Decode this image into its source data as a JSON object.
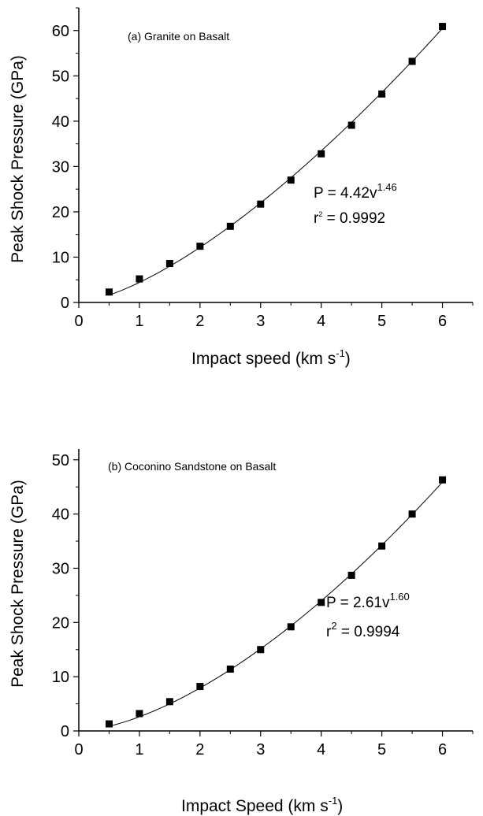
{
  "chart_data": [
    {
      "type": "scatter",
      "annotation": "(a) Granite on Basalt",
      "xlabel": "Impact speed (km s",
      "xlabel_sup": "-1",
      "xlabel_close": ")",
      "ylabel": "Peak Shock Pressure (GPa)",
      "xlim": [
        0,
        6.5
      ],
      "ylim": [
        0,
        65
      ],
      "xticks": [
        0,
        1,
        2,
        3,
        4,
        5,
        6
      ],
      "yticks": [
        0,
        10,
        20,
        30,
        40,
        50,
        60
      ],
      "series": [
        {
          "x": [
            0.5,
            1.0,
            1.5,
            2.0,
            2.5,
            3.0,
            3.5,
            4.0,
            4.5,
            5.0,
            5.5,
            6.0
          ],
          "y": [
            2.3,
            5.2,
            8.6,
            12.4,
            16.8,
            21.7,
            27.0,
            32.8,
            39.1,
            46.0,
            53.2,
            60.9
          ]
        }
      ],
      "fit": {
        "coef": 4.42,
        "exp": 1.46,
        "x_start": 0.5,
        "x_end": 6.0
      },
      "equation": {
        "main": "P = 4.42v",
        "exp": "1.46",
        "r2_base": "r",
        "r2_sup": "2",
        "r2_rest": " = 0.9992"
      },
      "grid": false,
      "marker": "square",
      "color": "#000000"
    },
    {
      "type": "scatter",
      "annotation": "(b) Coconino Sandstone on Basalt",
      "xlabel": "Impact Speed (km s",
      "xlabel_sup": "-1",
      "xlabel_close": ")",
      "ylabel": "Peak Shock Pressure (GPa)",
      "xlim": [
        0,
        6.5
      ],
      "ylim": [
        0,
        52
      ],
      "xticks": [
        0,
        1,
        2,
        3,
        4,
        5,
        6
      ],
      "yticks": [
        0,
        10,
        20,
        30,
        40,
        50
      ],
      "series": [
        {
          "x": [
            0.5,
            1.0,
            1.5,
            2.0,
            2.5,
            3.0,
            3.5,
            4.0,
            4.5,
            5.0,
            5.5,
            6.0
          ],
          "y": [
            1.3,
            3.2,
            5.4,
            8.2,
            11.4,
            15.0,
            19.2,
            23.7,
            28.7,
            34.1,
            40.0,
            46.3
          ]
        }
      ],
      "fit": {
        "coef": 2.61,
        "exp": 1.6,
        "x_start": 0.5,
        "x_end": 6.0
      },
      "equation": {
        "main": "P = 2.61v",
        "exp": "1.60",
        "r2_base": "r",
        "r2_sup": "2",
        "r2_rest": " = 0.9994"
      },
      "grid": false,
      "marker": "square",
      "color": "#000000"
    }
  ]
}
